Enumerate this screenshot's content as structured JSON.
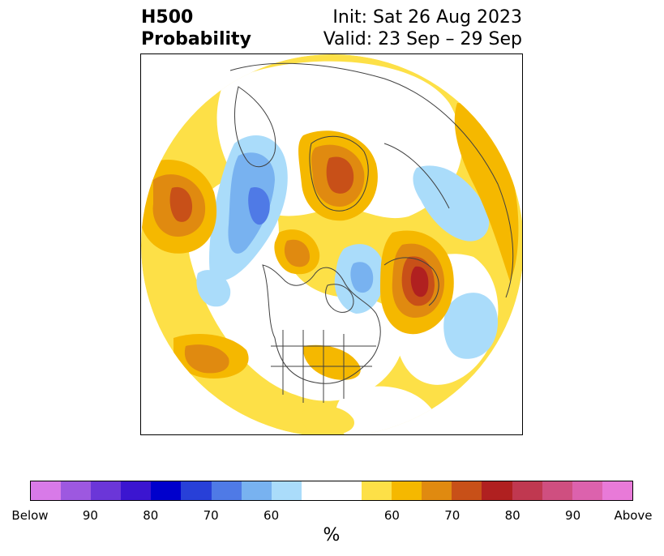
{
  "header": {
    "title_line1": "H500",
    "title_line2": "Probability",
    "init_text": "Init: Sat 26 Aug 2023",
    "valid_text": "Valid: 23 Sep – 29 Sep"
  },
  "colorbar": {
    "unit": "%",
    "colors": [
      "#d87ae8",
      "#9d58e0",
      "#6b36d8",
      "#3b15d0",
      "#0000cc",
      "#2840d8",
      "#4f7ae6",
      "#78b2f0",
      "#aadcfa",
      "#ffffff",
      "#ffffff",
      "#fde047",
      "#f5b800",
      "#e08a10",
      "#c85018",
      "#b02020",
      "#c03850",
      "#cf4f80",
      "#dc62ad",
      "#e87ad8"
    ],
    "tick_labels": [
      "Below",
      "90",
      "80",
      "70",
      "60",
      "60",
      "70",
      "80",
      "90",
      "Above"
    ]
  },
  "map": {
    "colors": {
      "above_60": "#fde047",
      "above_65": "#f5b800",
      "above_70": "#e08a10",
      "above_75": "#c85018",
      "above_80": "#b02020",
      "below_60": "#aadcfa",
      "below_65": "#78b2f0",
      "below_70": "#4f7ae6",
      "coastline": "#404040"
    }
  }
}
